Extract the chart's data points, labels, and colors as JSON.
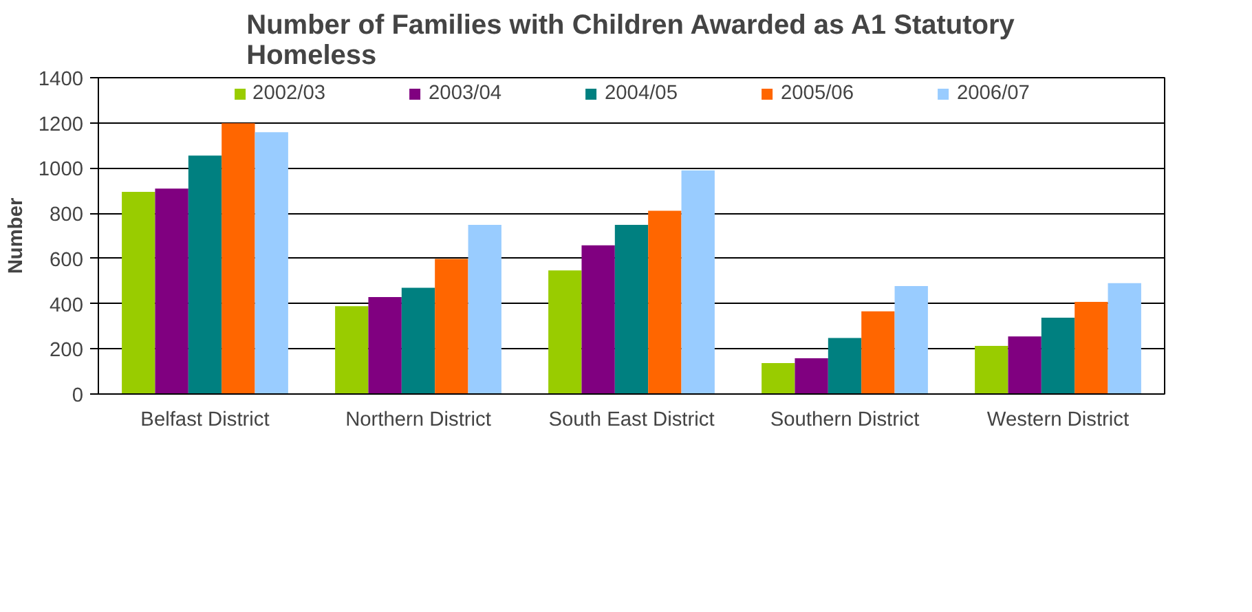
{
  "chart_data": {
    "type": "bar",
    "title": "Number of Families with Children Awarded as A1 Statutory Homeless",
    "ylabel": "Number",
    "categories": [
      "Belfast District",
      "Northern District",
      "South East District",
      "Southern District",
      "Western District"
    ],
    "series": [
      {
        "name": "2002/03",
        "color": "#99cc00",
        "values": [
          895,
          389,
          547,
          137,
          213
        ]
      },
      {
        "name": "2003/04",
        "color": "#800080",
        "values": [
          909,
          429,
          658,
          158,
          255
        ]
      },
      {
        "name": "2004/05",
        "color": "#008080",
        "values": [
          1055,
          470,
          749,
          248,
          338
        ]
      },
      {
        "name": "2005/06",
        "color": "#ff6600",
        "values": [
          1198,
          598,
          811,
          366,
          408
        ]
      },
      {
        "name": "2006/07",
        "color": "#99ccff",
        "values": [
          1159,
          749,
          990,
          478,
          491
        ]
      }
    ],
    "ylim": [
      0,
      1400
    ],
    "yticks": [
      0,
      200,
      400,
      600,
      800,
      1000,
      1200,
      1400
    ],
    "grid": "y",
    "legend": "top"
  }
}
